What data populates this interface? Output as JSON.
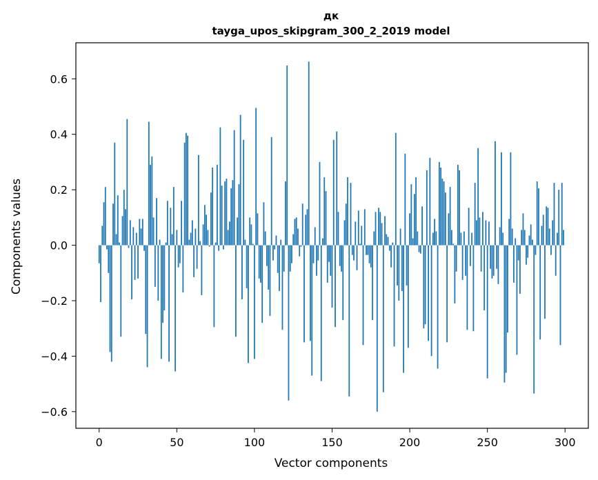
{
  "chart_data": {
    "type": "bar",
    "title": "дк",
    "subtitle": "tayga_upos_skipgram_300_2_2019 model",
    "xlabel": "Vector components",
    "ylabel": "Components values",
    "xlim": [
      -15,
      315
    ],
    "ylim": [
      -0.66,
      0.73
    ],
    "xticks": [
      0,
      50,
      100,
      150,
      200,
      250,
      300
    ],
    "yticks": [
      -0.6,
      -0.4,
      -0.2,
      0.0,
      0.2,
      0.4,
      0.6
    ],
    "ytick_labels": [
      "−0.6",
      "−0.4",
      "−0.2",
      "0.0",
      "0.2",
      "0.4",
      "0.6"
    ],
    "bar_color": "#1f77b4",
    "grid": false,
    "values": [
      -0.065,
      -0.205,
      0.07,
      0.155,
      0.21,
      -0.015,
      -0.1,
      -0.385,
      -0.42,
      0.15,
      0.37,
      0.04,
      0.18,
      0.01,
      -0.33,
      0.105,
      0.2,
      0.13,
      0.455,
      -0.01,
      0.09,
      -0.195,
      0.065,
      -0.125,
      0.045,
      -0.12,
      0.095,
      0.06,
      0.095,
      -0.02,
      -0.32,
      -0.44,
      0.445,
      0.29,
      0.32,
      0.1,
      -0.15,
      0.17,
      -0.2,
      0.02,
      -0.41,
      -0.28,
      -0.235,
      0.01,
      0.16,
      -0.42,
      0.135,
      0.04,
      0.21,
      -0.455,
      0.055,
      -0.08,
      -0.065,
      0.16,
      -0.17,
      0.37,
      0.405,
      0.395,
      0.02,
      0.045,
      0.09,
      -0.115,
      0.06,
      -0.085,
      0.325,
      0.015,
      -0.18,
      0.075,
      0.145,
      0.11,
      0.055,
      -0.005,
      0.19,
      0.28,
      -0.295,
      0.01,
      0.29,
      -0.02,
      0.425,
      0.215,
      -0.015,
      0.23,
      0.24,
      0.055,
      0.085,
      0.205,
      0.235,
      0.415,
      -0.33,
      0.1,
      0.22,
      0.47,
      -0.195,
      0.38,
      0.02,
      -0.155,
      -0.425,
      0.1,
      0.075,
      0.005,
      -0.41,
      0.495,
      0.115,
      -0.12,
      -0.135,
      -0.28,
      0.155,
      0.05,
      -0.075,
      -0.16,
      -0.255,
      0.39,
      -0.055,
      -0.015,
      0.035,
      -0.1,
      -0.165,
      0.02,
      -0.305,
      -0.095,
      0.23,
      0.648,
      -0.56,
      -0.095,
      -0.065,
      0.04,
      0.095,
      0.1,
      0.06,
      -0.04,
      -0.005,
      0.15,
      -0.35,
      0.11,
      0.13,
      0.662,
      -0.345,
      -0.47,
      -0.065,
      0.065,
      -0.11,
      -0.055,
      0.3,
      -0.49,
      0.025,
      0.245,
      0.195,
      -0.135,
      -0.06,
      -0.11,
      -0.225,
      0.38,
      -0.295,
      0.41,
      0.12,
      -0.075,
      -0.095,
      -0.27,
      0.09,
      0.15,
      0.245,
      -0.545,
      0.225,
      -0.035,
      -0.055,
      0.085,
      -0.09,
      0.125,
      0.005,
      0.07,
      -0.36,
      0.13,
      -0.035,
      -0.035,
      -0.065,
      -0.08,
      -0.27,
      0.05,
      0.12,
      -0.6,
      0.135,
      0.12,
      0.08,
      -0.53,
      0.105,
      0.04,
      0.03,
      -0.02,
      -0.08,
      0.01,
      -0.365,
      0.405,
      -0.145,
      -0.2,
      0.06,
      -0.165,
      -0.46,
      0.33,
      -0.145,
      -0.37,
      0.115,
      0.22,
      0.025,
      0.185,
      0.245,
      0.05,
      -0.025,
      -0.03,
      0.14,
      -0.3,
      -0.285,
      0.27,
      -0.345,
      0.315,
      -0.4,
      0.045,
      0.095,
      0.05,
      -0.445,
      0.3,
      0.28,
      0.24,
      0.23,
      0.19,
      -0.35,
      0.115,
      0.21,
      0.055,
      0.005,
      -0.21,
      -0.095,
      0.29,
      0.27,
      0.045,
      -0.125,
      0.05,
      -0.11,
      -0.305,
      0.135,
      -0.075,
      0.045,
      -0.31,
      0.225,
      0.09,
      0.35,
      0.1,
      -0.095,
      0.12,
      -0.235,
      0.09,
      -0.48,
      0.085,
      -0.085,
      -0.12,
      -0.11,
      0.375,
      -0.085,
      -0.14,
      0.065,
      0.335,
      0.045,
      -0.495,
      -0.46,
      -0.315,
      0.095,
      0.335,
      0.06,
      -0.135,
      0.025,
      -0.395,
      -0.055,
      -0.175,
      0.055,
      0.115,
      0.055,
      -0.07,
      -0.045,
      0.035,
      0.075,
      0.02,
      -0.535,
      -0.035,
      0.23,
      0.205,
      -0.34,
      0.07,
      0.11,
      -0.265,
      0.14,
      0.135,
      0.06,
      -0.035,
      0.09,
      0.225,
      -0.11,
      0.045,
      0.2,
      -0.36,
      0.225,
      0.055
    ]
  }
}
